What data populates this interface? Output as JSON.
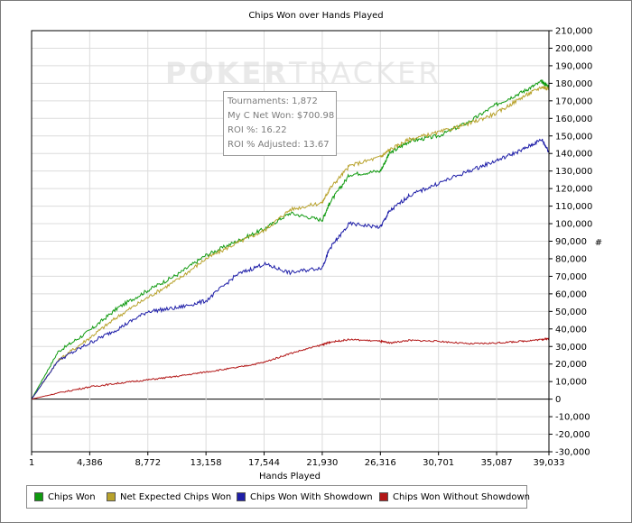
{
  "watermark": {
    "bold_part": "POKER",
    "thin_part": "TRACKER"
  },
  "stats": {
    "tournaments": "Tournaments: 1,872",
    "net_won": "My C Net Won: $700.98",
    "roi": "ROI %: 16.22",
    "roi_adjusted": "ROI % Adjusted: 13.67"
  },
  "colors": {
    "chips_won": "#0f9a0f",
    "net_expected": "#b8a22c",
    "with_showdown": "#1e1ea8",
    "without_showdown": "#b21616",
    "grid": "#dcdcdc"
  },
  "chart_data": {
    "type": "line",
    "title": "Chips Won over Hands Played",
    "xlabel": "Hands Played",
    "ylabel": "#",
    "xlim": [
      1,
      39033
    ],
    "ylim": [
      -30000,
      210000
    ],
    "x_ticks": [
      1,
      4386,
      8772,
      13158,
      17544,
      21930,
      26316,
      30701,
      35087,
      39033
    ],
    "x_tick_labels": [
      "1",
      "4,386",
      "8,772",
      "13,158",
      "17,544",
      "21,930",
      "26,316",
      "30,701",
      "35,087",
      "39,033"
    ],
    "y_ticks": [
      -30000,
      -20000,
      -10000,
      0,
      10000,
      20000,
      30000,
      40000,
      50000,
      60000,
      70000,
      80000,
      90000,
      100000,
      110000,
      120000,
      130000,
      140000,
      150000,
      160000,
      170000,
      180000,
      190000,
      200000,
      210000
    ],
    "y_tick_labels": [
      "-30,000",
      "-20,000",
      "-10,000",
      "0",
      "10,000",
      "20,000",
      "30,000",
      "40,000",
      "50,000",
      "60,000",
      "70,000",
      "80,000",
      "90,000",
      "100,000",
      "110,000",
      "120,000",
      "130,000",
      "140,000",
      "150,000",
      "160,000",
      "170,000",
      "180,000",
      "190,000",
      "200,000",
      "210,000"
    ],
    "grid": true,
    "legend_position": "bottom",
    "series": [
      {
        "name": "Chips Won",
        "color": "#0f9a0f",
        "x": [
          1,
          2000,
          4386,
          6500,
          8772,
          11000,
          13158,
          15500,
          17544,
          19500,
          21930,
          22500,
          24000,
          26316,
          27000,
          28500,
          30701,
          33000,
          35087,
          37000,
          38500,
          39033
        ],
        "y": [
          0,
          27000,
          39000,
          52000,
          62000,
          71000,
          82000,
          90000,
          97000,
          106000,
          102000,
          112000,
          128000,
          130000,
          140000,
          147000,
          150000,
          158000,
          168000,
          175000,
          181000,
          178000
        ]
      },
      {
        "name": "Net Expected Chips Won",
        "color": "#b8a22c",
        "x": [
          1,
          2000,
          4386,
          6500,
          8772,
          11000,
          13158,
          15500,
          17544,
          19500,
          21930,
          22500,
          24000,
          26316,
          27000,
          28500,
          30701,
          33000,
          35087,
          37000,
          38500,
          39033
        ],
        "y": [
          0,
          22000,
          35000,
          47000,
          58000,
          68000,
          80000,
          89000,
          96000,
          108000,
          112000,
          120000,
          133000,
          138000,
          142000,
          148000,
          152000,
          157000,
          163000,
          172000,
          178000,
          177000
        ]
      },
      {
        "name": "Chips Won With Showdown",
        "color": "#1e1ea8",
        "x": [
          1,
          2000,
          4386,
          6500,
          8772,
          11000,
          13158,
          15500,
          17544,
          19500,
          21930,
          22500,
          24000,
          26316,
          27000,
          28500,
          30701,
          33000,
          35087,
          37000,
          38500,
          39033
        ],
        "y": [
          0,
          22000,
          32000,
          40000,
          50000,
          52000,
          56000,
          71000,
          77000,
          72000,
          75000,
          86000,
          100000,
          98000,
          107000,
          116000,
          123000,
          130000,
          136000,
          142000,
          148000,
          141000
        ]
      },
      {
        "name": "Chips Won Without Showdown",
        "color": "#b21616",
        "x": [
          1,
          2000,
          4386,
          6500,
          8772,
          11000,
          13158,
          15500,
          17544,
          19500,
          21930,
          22500,
          24000,
          26316,
          27000,
          28500,
          30701,
          33000,
          35087,
          37000,
          38500,
          39033
        ],
        "y": [
          0,
          3500,
          7000,
          9000,
          11000,
          13000,
          15500,
          18000,
          21000,
          26000,
          31000,
          32500,
          34000,
          33000,
          32000,
          33500,
          33000,
          31500,
          32000,
          33000,
          34000,
          34500
        ]
      }
    ]
  }
}
